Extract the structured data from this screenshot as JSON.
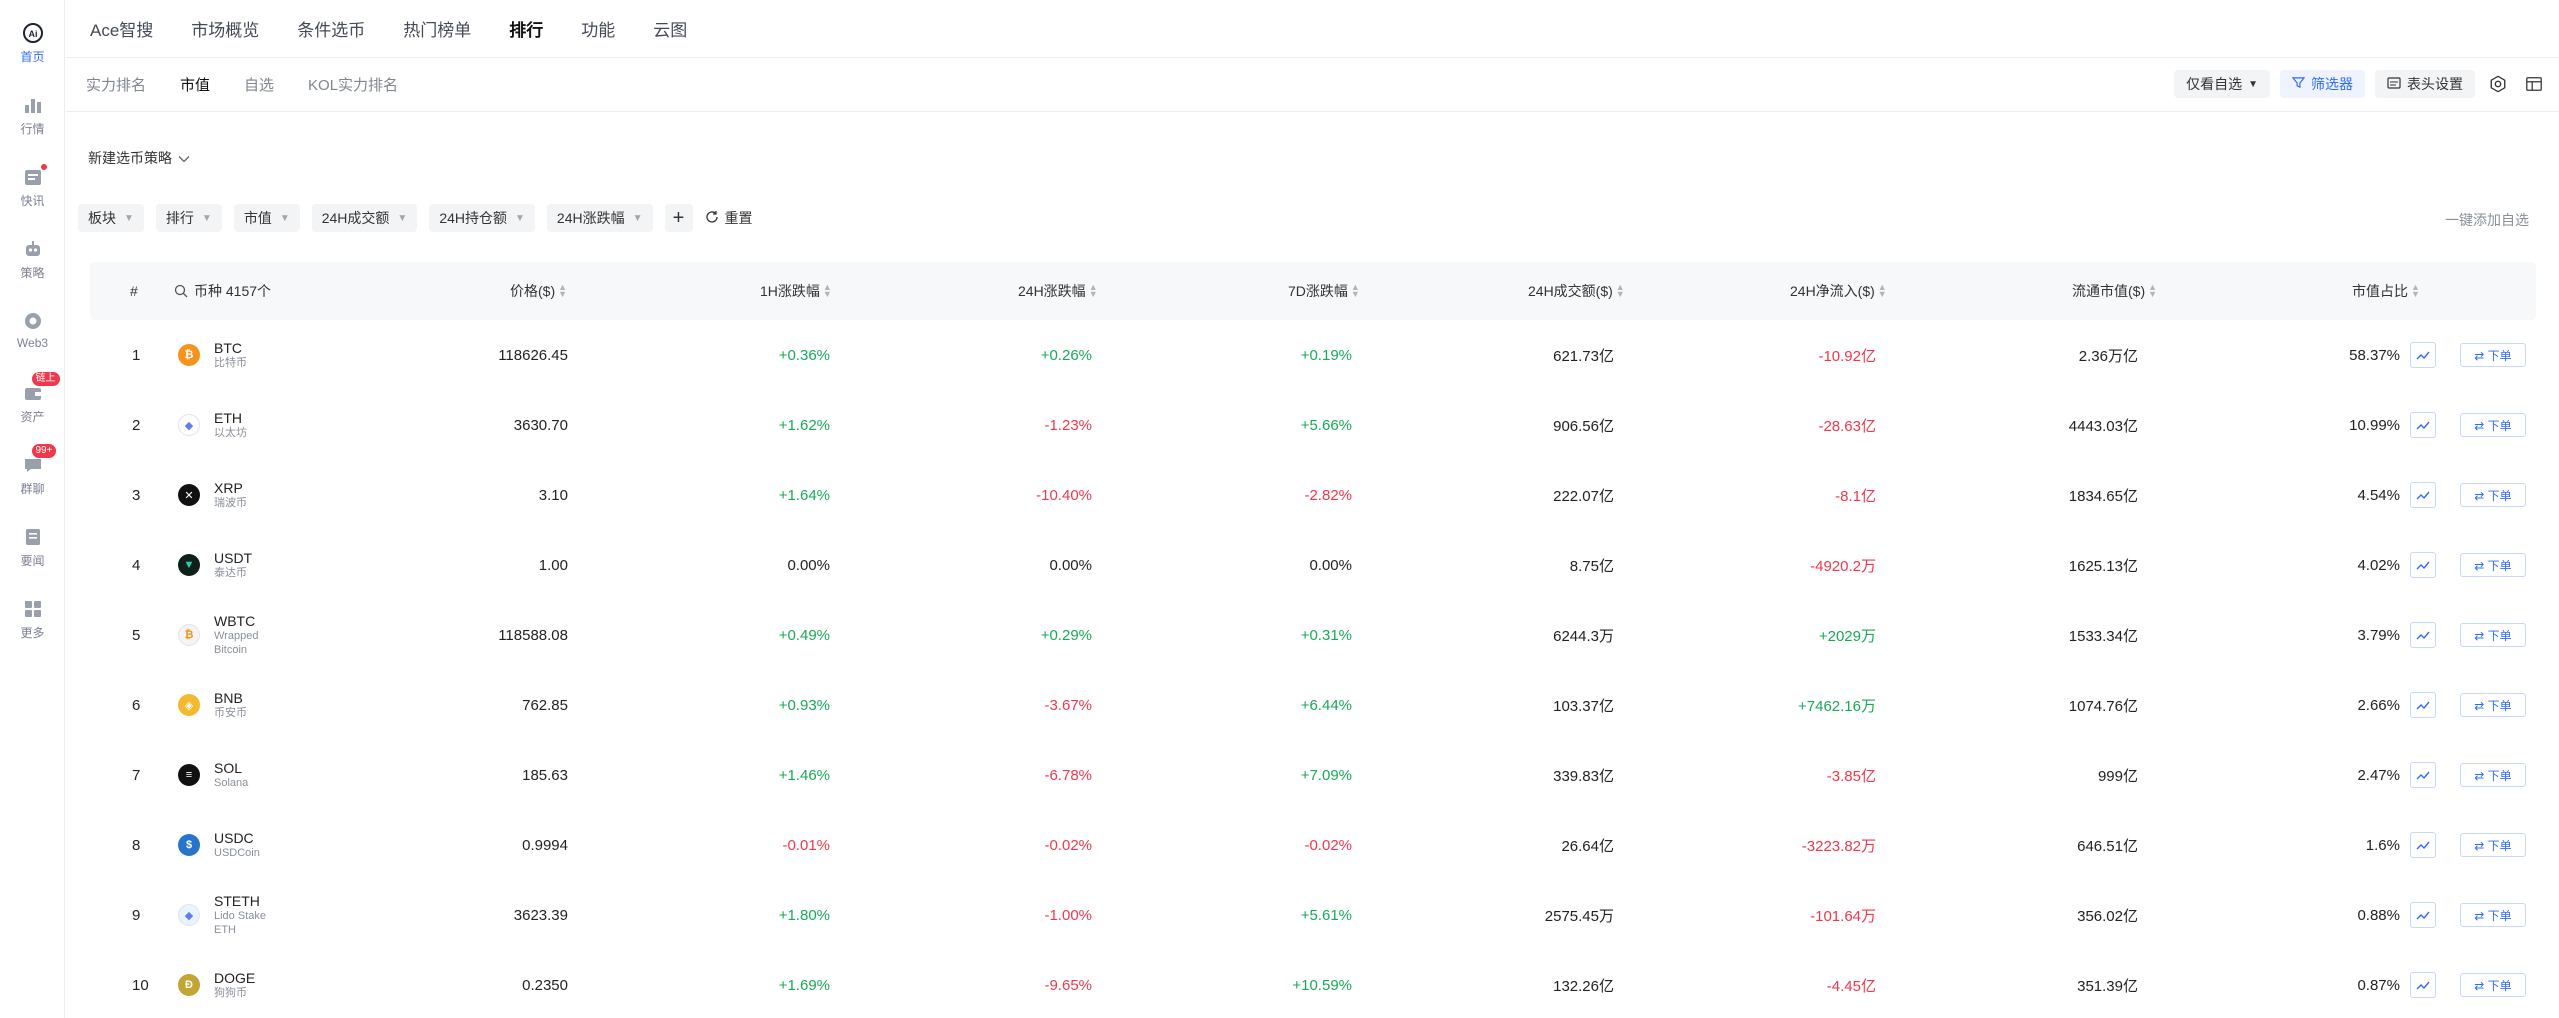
{
  "sidebar": {
    "items": [
      {
        "label": "首页",
        "icon": "home-icon",
        "active": true
      },
      {
        "label": "行情",
        "icon": "market-chart-icon"
      },
      {
        "label": "快讯",
        "icon": "news-icon",
        "dot": true
      },
      {
        "label": "策略",
        "icon": "robot-icon"
      },
      {
        "label": "Web3",
        "icon": "web3-icon"
      },
      {
        "label": "资产",
        "icon": "wallet-icon",
        "badge": "链上"
      },
      {
        "label": "群聊",
        "icon": "chat-icon",
        "badge": "99+"
      },
      {
        "label": "要闻",
        "icon": "document-icon"
      },
      {
        "label": "更多",
        "icon": "grid-icon"
      }
    ]
  },
  "topnav": [
    "Ace智搜",
    "市场概览",
    "条件选币",
    "热门榜单",
    "排行",
    "功能",
    "云图"
  ],
  "subtabs": [
    "实力排名",
    "市值",
    "自选",
    "KOL实力排名"
  ],
  "toolbar": {
    "watch_only": "仅看自选",
    "filter": "筛选器",
    "header_settings": "表头设置"
  },
  "strategy_label": "新建选币策略",
  "filters": [
    "板块",
    "排行",
    "市值",
    "24H成交额",
    "24H持仓额",
    "24H涨跌幅"
  ],
  "reset_label": "重置",
  "add_all_label": "一键添加自选",
  "table": {
    "headers": {
      "rank": "#",
      "coin": "币种 4157个",
      "price": "价格($)",
      "h1": "1H涨跌幅",
      "h24": "24H涨跌幅",
      "d7": "7D涨跌幅",
      "vol": "24H成交额($)",
      "inflow": "24H净流入($)",
      "mcap": "流通市值($)",
      "share": "市值占比"
    },
    "order_label": "⇄ 下单",
    "rows": [
      {
        "rank": "1",
        "symbol": "BTC",
        "name": "比特币",
        "logo_color": "#f7931a",
        "logo_glyph": "₿",
        "price": "118626.45",
        "h1": "+0.36%",
        "h24": "+0.26%",
        "d7": "+0.19%",
        "vol": "621.73亿",
        "inflow": "-10.92亿",
        "mcap": "2.36万亿",
        "share": "58.37%"
      },
      {
        "rank": "2",
        "symbol": "ETH",
        "name": "以太坊",
        "logo_color": "#ffffff",
        "logo_glyph": "◆",
        "price": "3630.70",
        "h1": "+1.62%",
        "h24": "-1.23%",
        "d7": "+5.66%",
        "vol": "906.56亿",
        "inflow": "-28.63亿",
        "mcap": "4443.03亿",
        "share": "10.99%"
      },
      {
        "rank": "3",
        "symbol": "XRP",
        "name": "瑞波币",
        "logo_color": "#111111",
        "logo_glyph": "✕",
        "price": "3.10",
        "h1": "+1.64%",
        "h24": "-10.40%",
        "d7": "-2.82%",
        "vol": "222.07亿",
        "inflow": "-8.1亿",
        "mcap": "1834.65亿",
        "share": "4.54%"
      },
      {
        "rank": "4",
        "symbol": "USDT",
        "name": "泰达币",
        "logo_color": "#0f1f1a",
        "logo_glyph": "▼",
        "price": "1.00",
        "h1": "0.00%",
        "h24": "0.00%",
        "d7": "0.00%",
        "vol": "8.75亿",
        "inflow": "-4920.2万",
        "mcap": "1625.13亿",
        "share": "4.02%"
      },
      {
        "rank": "5",
        "symbol": "WBTC",
        "name": "Wrapped Bitcoin",
        "logo_color": "#f4f4f4",
        "logo_glyph": "₿",
        "price": "118588.08",
        "h1": "+0.49%",
        "h24": "+0.29%",
        "d7": "+0.31%",
        "vol": "6244.3万",
        "inflow": "+2029万",
        "mcap": "1533.34亿",
        "share": "3.79%"
      },
      {
        "rank": "6",
        "symbol": "BNB",
        "name": "币安币",
        "logo_color": "#f3ba2f",
        "logo_glyph": "◈",
        "price": "762.85",
        "h1": "+0.93%",
        "h24": "-3.67%",
        "d7": "+6.44%",
        "vol": "103.37亿",
        "inflow": "+7462.16万",
        "mcap": "1074.76亿",
        "share": "2.66%"
      },
      {
        "rank": "7",
        "symbol": "SOL",
        "name": "Solana",
        "logo_color": "#111111",
        "logo_glyph": "≡",
        "price": "185.63",
        "h1": "+1.46%",
        "h24": "-6.78%",
        "d7": "+7.09%",
        "vol": "339.83亿",
        "inflow": "-3.85亿",
        "mcap": "999亿",
        "share": "2.47%"
      },
      {
        "rank": "8",
        "symbol": "USDC",
        "name": "USDCoin",
        "logo_color": "#2775ca",
        "logo_glyph": "$",
        "price": "0.9994",
        "h1": "-0.01%",
        "h24": "-0.02%",
        "d7": "-0.02%",
        "vol": "26.64亿",
        "inflow": "-3223.82万",
        "mcap": "646.51亿",
        "share": "1.6%"
      },
      {
        "rank": "9",
        "symbol": "STETH",
        "name": "Lido Stake ETH",
        "logo_color": "#e8f4ff",
        "logo_glyph": "◆",
        "price": "3623.39",
        "h1": "+1.80%",
        "h24": "-1.00%",
        "d7": "+5.61%",
        "vol": "2575.45万",
        "inflow": "-101.64万",
        "mcap": "356.02亿",
        "share": "0.88%"
      },
      {
        "rank": "10",
        "symbol": "DOGE",
        "name": "狗狗币",
        "logo_color": "#c2a633",
        "logo_glyph": "Ð",
        "price": "0.2350",
        "h1": "+1.69%",
        "h24": "-9.65%",
        "d7": "+10.59%",
        "vol": "132.26亿",
        "inflow": "-4.45亿",
        "mcap": "351.39亿",
        "share": "0.87%"
      }
    ]
  }
}
